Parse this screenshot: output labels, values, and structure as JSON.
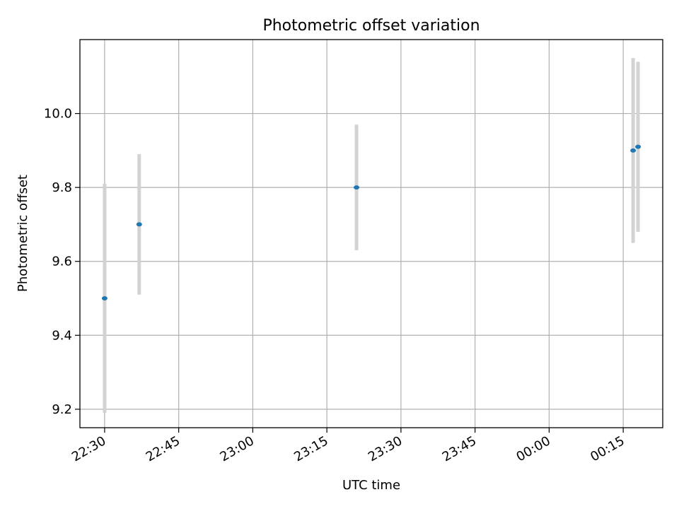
{
  "chart_data": {
    "type": "scatter",
    "title": "Photometric offset variation",
    "xlabel": "UTC time",
    "ylabel": "Photometric offset",
    "x_ticks": [
      "22:30",
      "22:45",
      "23:00",
      "23:15",
      "23:30",
      "23:45",
      "00:00",
      "00:15"
    ],
    "y_ticks": [
      "9.2",
      "9.4",
      "9.6",
      "9.8",
      "10.0"
    ],
    "ylim": [
      9.15,
      10.2
    ],
    "xlim": [
      "22:25",
      "00:23"
    ],
    "grid": true,
    "series": [
      {
        "points": [
          {
            "x": "22:30",
            "y": 9.5,
            "err": 0.31
          },
          {
            "x": "22:37",
            "y": 9.7,
            "err": 0.19
          },
          {
            "x": "23:21",
            "y": 9.8,
            "err": 0.17
          },
          {
            "x": "00:17",
            "y": 9.9,
            "err": 0.25
          },
          {
            "x": "00:18",
            "y": 9.91,
            "err": 0.23
          }
        ]
      }
    ],
    "colors": {
      "point": "#1f77b4",
      "errorbar": "#d3d3d3",
      "grid": "#b0b0b0"
    }
  }
}
